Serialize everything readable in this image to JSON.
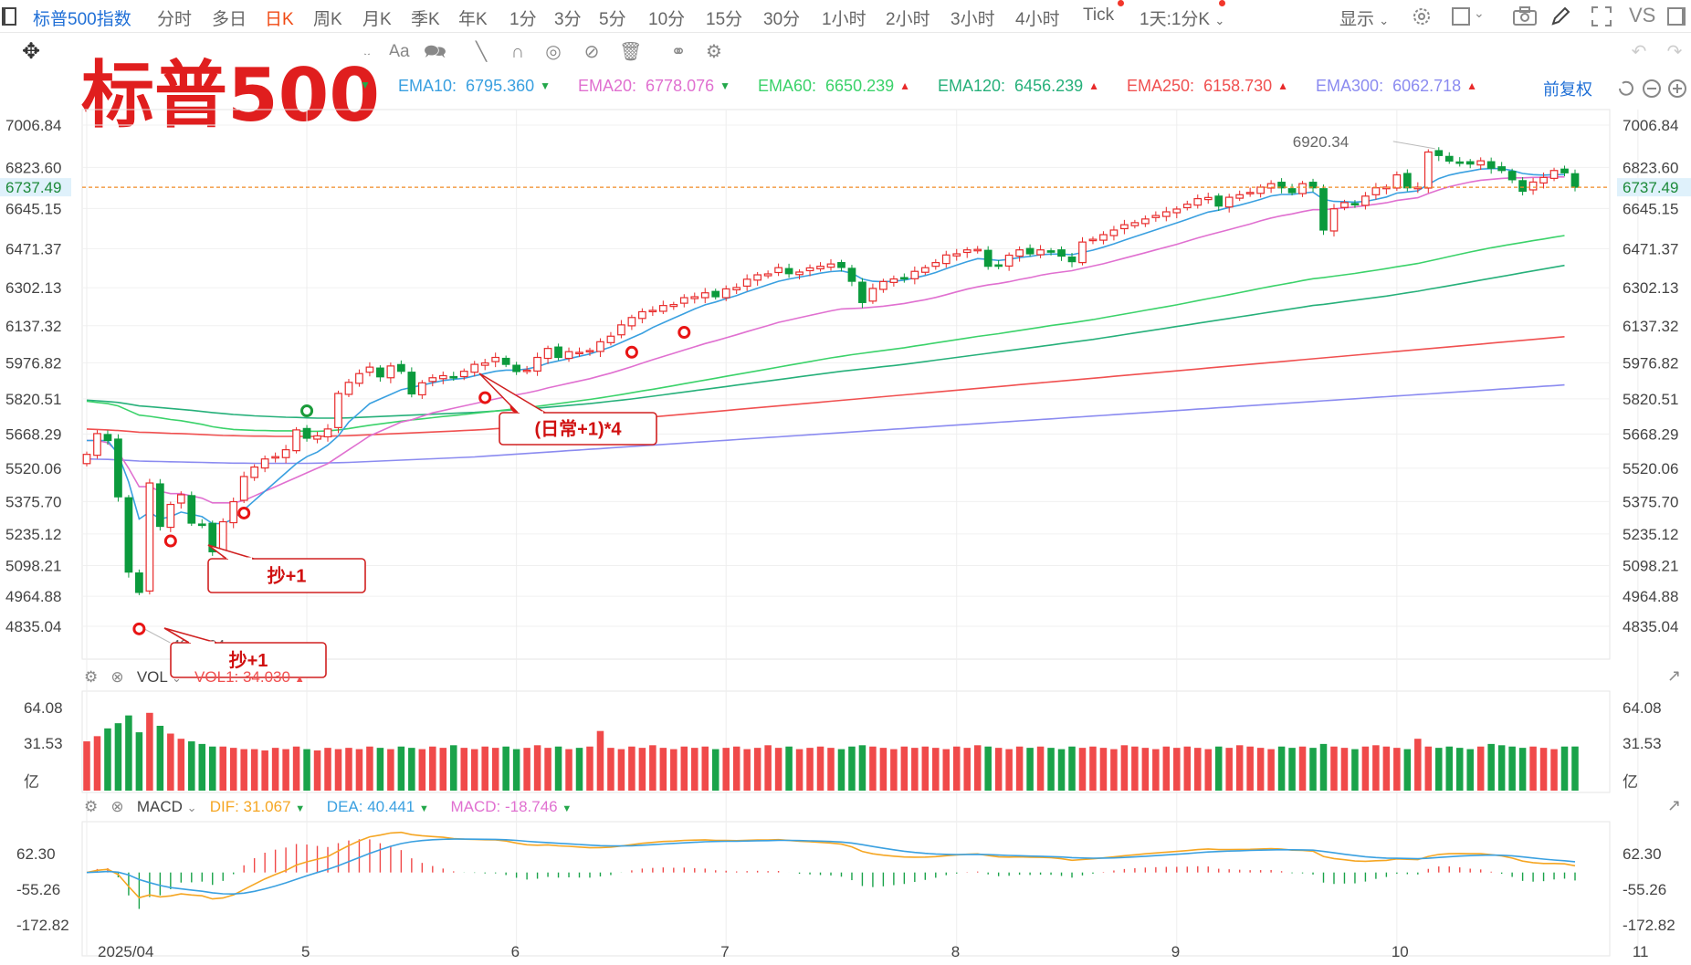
{
  "topbar": {
    "symbol": "标普500指数",
    "timeframes": [
      "分时",
      "多日",
      "日K",
      "周K",
      "月K",
      "季K",
      "年K",
      "1分",
      "3分",
      "5分",
      "10分",
      "15分",
      "30分",
      "1小时",
      "2小时",
      "3小时",
      "4小时",
      "Tick"
    ],
    "active_timeframe": "日K",
    "period_select": "1天:1分K",
    "display_label": "显示",
    "vs_label": "VS"
  },
  "title": "标普500",
  "adjust_label": "前复权",
  "ema_legend": [
    {
      "label": "EMA10:",
      "value": "6795.360",
      "dir": "down",
      "color": "#3aa0e0"
    },
    {
      "label": "EMA20:",
      "value": "6778.076",
      "dir": "down",
      "color": "#e070d0"
    },
    {
      "label": "EMA60:",
      "value": "6650.239",
      "dir": "up",
      "color": "#3bd26a"
    },
    {
      "label": "EMA120:",
      "value": "6456.239",
      "dir": "up",
      "color": "#26b07a"
    },
    {
      "label": "EMA250:",
      "value": "6158.730",
      "dir": "up",
      "color": "#f05050"
    },
    {
      "label": "EMA300:",
      "value": "6062.718",
      "dir": "up",
      "color": "#8b8bf0"
    }
  ],
  "price_axis": [
    "7006.84",
    "6823.60",
    "6645.15",
    "6471.37",
    "6302.13",
    "6137.32",
    "5976.82",
    "5820.51",
    "5668.29",
    "5520.06",
    "5375.70",
    "5235.12",
    "5098.21",
    "4964.88",
    "4835.04"
  ],
  "last_price": "6737.49",
  "high_marker": "6920.34",
  "low_marker": "4835.04",
  "annotations": [
    {
      "text": "(日常+1)*4"
    },
    {
      "text": "抄+1"
    },
    {
      "text": "抄+1"
    }
  ],
  "vol_panel": {
    "name": "VOL",
    "legend": "VOL1:  34.030",
    "axis": [
      "64.08",
      "31.53",
      "亿"
    ]
  },
  "macd_panel": {
    "name": "MACD",
    "dif": "DIF:  31.067",
    "dea": "DEA:  40.441",
    "macd": "MACD:  -18.746",
    "axis": [
      "62.30",
      "-55.26",
      "-172.82"
    ]
  },
  "x_axis": [
    "2025/04",
    "5",
    "6",
    "7",
    "8",
    "9",
    "10",
    "11"
  ],
  "chart_data": {
    "type": "candlestick",
    "title": "标普500",
    "xlabel": "",
    "ylabel": "",
    "ylim": [
      4835.04,
      7006.84
    ],
    "months": [
      {
        "label": "2025/04",
        "start_bar": 0
      },
      {
        "label": "5",
        "start_bar": 21
      },
      {
        "label": "6",
        "start_bar": 41
      },
      {
        "label": "7",
        "start_bar": 61
      },
      {
        "label": "8",
        "start_bar": 83
      },
      {
        "label": "9",
        "start_bar": 104
      },
      {
        "label": "10",
        "start_bar": 125
      },
      {
        "label": "11",
        "start_bar": 148
      }
    ],
    "close": [
      5580,
      5670,
      5640,
      5396,
      5070,
      4982,
      5456,
      5268,
      5363,
      5405,
      5282,
      5275,
      5158,
      5288,
      5375,
      5484,
      5525,
      5560,
      5570,
      5600,
      5686,
      5650,
      5660,
      5690,
      5844,
      5892,
      5930,
      5958,
      5916,
      5963,
      5940,
      5842,
      5890,
      5912,
      5921,
      5911,
      5940,
      5970,
      5976,
      6000,
      5970,
      5939,
      5945,
      6000,
      6039,
      6000,
      6025,
      6022,
      6030,
      6068,
      6092,
      6141,
      6173,
      6198,
      6204,
      6225,
      6229,
      6259,
      6263,
      6280,
      6263,
      6297,
      6303,
      6339,
      6358,
      6362,
      6389,
      6363,
      6370,
      6388,
      6395,
      6405,
      6390,
      6330,
      6238,
      6299,
      6329,
      6340,
      6345,
      6373,
      6389,
      6411,
      6444,
      6449,
      6466,
      6468,
      6395,
      6400,
      6443,
      6466,
      6449,
      6466,
      6460,
      6439,
      6415,
      6500,
      6512,
      6532,
      6552,
      6575,
      6584,
      6600,
      6615,
      6631,
      6643,
      6664,
      6688,
      6693,
      6656,
      6694,
      6705,
      6715,
      6738,
      6753,
      6735,
      6714,
      6753,
      6735,
      6552,
      6644,
      6671,
      6663,
      6699,
      6735,
      6738,
      6791,
      6735,
      6738,
      6890,
      6875,
      6851,
      6842,
      6838,
      6852,
      6820,
      6810,
      6770,
      6720,
      6760,
      6780,
      6810,
      6800,
      6737.49
    ],
    "ema10": [
      5640,
      5640,
      5640,
      5580,
      5460,
      5300,
      5330,
      5300,
      5310,
      5330,
      5320,
      5310,
      5280,
      5280,
      5300,
      5340,
      5380,
      5420,
      5460,
      5500,
      5540,
      5570,
      5590,
      5620,
      5660,
      5720,
      5760,
      5800,
      5820,
      5840,
      5860,
      5870,
      5880,
      5890,
      5900,
      5905,
      5910,
      5920,
      5930,
      5940,
      5945,
      5945,
      5950,
      5960,
      5975,
      5985,
      5995,
      6005,
      6015,
      6030,
      6045,
      6065,
      6085,
      6105,
      6130,
      6150,
      6170,
      6190,
      6210,
      6228,
      6240,
      6255,
      6268,
      6285,
      6300,
      6315,
      6330,
      6340,
      6348,
      6356,
      6365,
      6372,
      6375,
      6365,
      6340,
      6330,
      6328,
      6330,
      6335,
      6345,
      6355,
      6368,
      6385,
      6400,
      6415,
      6428,
      6425,
      6420,
      6425,
      6433,
      6438,
      6445,
      6448,
      6448,
      6445,
      6455,
      6465,
      6478,
      6492,
      6508,
      6523,
      6538,
      6553,
      6568,
      6583,
      6598,
      6615,
      6630,
      6638,
      6650,
      6660,
      6672,
      6685,
      6700,
      6706,
      6706,
      6712,
      6716,
      6685,
      6676,
      6675,
      6673,
      6676,
      6685,
      6695,
      6712,
      6717,
      6722,
      6750,
      6775,
      6790,
      6800,
      6808,
      6816,
      6818,
      6818,
      6810,
      6797,
      6792,
      6790,
      6792,
      6792,
      6795.36
    ],
    "ema20": [
      5640,
      5640,
      5630,
      5590,
      5520,
      5440,
      5440,
      5420,
      5410,
      5410,
      5400,
      5390,
      5370,
      5370,
      5370,
      5380,
      5400,
      5420,
      5440,
      5460,
      5480,
      5500,
      5520,
      5540,
      5570,
      5600,
      5630,
      5660,
      5680,
      5700,
      5720,
      5730,
      5745,
      5760,
      5770,
      5780,
      5790,
      5800,
      5810,
      5820,
      5830,
      5838,
      5846,
      5856,
      5868,
      5878,
      5888,
      5898,
      5908,
      5920,
      5932,
      5946,
      5960,
      5975,
      5990,
      6004,
      6018,
      6032,
      6046,
      6060,
      6072,
      6085,
      6098,
      6112,
      6125,
      6138,
      6152,
      6162,
      6172,
      6182,
      6192,
      6202,
      6210,
      6212,
      6214,
      6218,
      6222,
      6228,
      6234,
      6242,
      6250,
      6260,
      6272,
      6284,
      6296,
      6306,
      6314,
      6320,
      6328,
      6338,
      6346,
      6356,
      6364,
      6370,
      6376,
      6386,
      6396,
      6406,
      6418,
      6430,
      6442,
      6454,
      6466,
      6478,
      6490,
      6504,
      6518,
      6530,
      6542,
      6554,
      6566,
      6578,
      6592,
      6604,
      6614,
      6622,
      6632,
      6640,
      6640,
      6644,
      6648,
      6652,
      6658,
      6664,
      6670,
      6680,
      6686,
      6692,
      6710,
      6726,
      6740,
      6750,
      6760,
      6768,
      6772,
      6776,
      6778,
      6778,
      6780,
      6780,
      6782,
      6782,
      6778.076
    ],
    "ema60": [
      5810,
      5805,
      5800,
      5790,
      5770,
      5750,
      5745,
      5738,
      5731,
      5726,
      5718,
      5710,
      5700,
      5693,
      5688,
      5686,
      5684,
      5683,
      5682,
      5682,
      5682,
      5680,
      5680,
      5682,
      5686,
      5692,
      5699,
      5706,
      5712,
      5718,
      5724,
      5729,
      5734,
      5739,
      5744,
      5748,
      5753,
      5758,
      5763,
      5768,
      5773,
      5778,
      5783,
      5788,
      5794,
      5800,
      5806,
      5812,
      5818,
      5825,
      5832,
      5839,
      5847,
      5855,
      5862,
      5870,
      5878,
      5886,
      5894,
      5902,
      5910,
      5918,
      5926,
      5934,
      5942,
      5950,
      5958,
      5966,
      5974,
      5982,
      5990,
      5998,
      6005,
      6012,
      6018,
      6024,
      6030,
      6036,
      6042,
      6049,
      6056,
      6063,
      6070,
      6077,
      6084,
      6091,
      6097,
      6103,
      6110,
      6117,
      6124,
      6131,
      6138,
      6144,
      6150,
      6157,
      6164,
      6172,
      6180,
      6188,
      6196,
      6204,
      6212,
      6220,
      6228,
      6237,
      6246,
      6255,
      6263,
      6272,
      6281,
      6290,
      6299,
      6308,
      6316,
      6324,
      6333,
      6341,
      6346,
      6352,
      6358,
      6364,
      6371,
      6378,
      6385,
      6393,
      6400,
      6407,
      6417,
      6427,
      6437,
      6447,
      6457,
      6466,
      6475,
      6483,
      6491,
      6498,
      6506,
      6513,
      6521,
      6528,
      6650.239
    ],
    "ema120": [
      5815,
      5812,
      5809,
      5805,
      5798,
      5790,
      5787,
      5783,
      5779,
      5775,
      5771,
      5766,
      5761,
      5757,
      5753,
      5750,
      5747,
      5745,
      5743,
      5741,
      5740,
      5738,
      5737,
      5737,
      5737,
      5738,
      5740,
      5742,
      5744,
      5746,
      5748,
      5750,
      5752,
      5754,
      5756,
      5758,
      5760,
      5762,
      5765,
      5768,
      5771,
      5774,
      5777,
      5780,
      5784,
      5788,
      5792,
      5796,
      5800,
      5805,
      5810,
      5815,
      5820,
      5826,
      5832,
      5838,
      5844,
      5850,
      5856,
      5862,
      5868,
      5874,
      5880,
      5886,
      5892,
      5898,
      5904,
      5910,
      5916,
      5922,
      5928,
      5934,
      5940,
      5945,
      5950,
      5955,
      5960,
      5965,
      5970,
      5976,
      5982,
      5988,
      5994,
      6000,
      6006,
      6012,
      6018,
      6024,
      6030,
      6036,
      6042,
      6048,
      6054,
      6060,
      6066,
      6072,
      6078,
      6085,
      6092,
      6099,
      6106,
      6113,
      6120,
      6127,
      6134,
      6141,
      6148,
      6155,
      6162,
      6169,
      6176,
      6183,
      6190,
      6197,
      6204,
      6211,
      6218,
      6225,
      6230,
      6236,
      6242,
      6248,
      6254,
      6260,
      6266,
      6273,
      6280,
      6287,
      6295,
      6303,
      6311,
      6319,
      6327,
      6335,
      6343,
      6351,
      6359,
      6367,
      6375,
      6383,
      6391,
      6399,
      6456.239
    ],
    "ema250": [
      5690,
      5688,
      5686,
      5683,
      5680,
      5676,
      5675,
      5673,
      5671,
      5670,
      5668,
      5666,
      5664,
      5662,
      5661,
      5660,
      5659,
      5659,
      5658,
      5658,
      5658,
      5658,
      5658,
      5659,
      5660,
      5661,
      5663,
      5665,
      5667,
      5669,
      5671,
      5673,
      5675,
      5677,
      5679,
      5681,
      5683,
      5685,
      5688,
      5691,
      5694,
      5697,
      5700,
      5703,
      5706,
      5709,
      5712,
      5715,
      5718,
      5722,
      5726,
      5730,
      5734,
      5738,
      5742,
      5746,
      5750,
      5754,
      5758,
      5762,
      5766,
      5770,
      5774,
      5778,
      5782,
      5786,
      5790,
      5794,
      5798,
      5802,
      5806,
      5810,
      5814,
      5818,
      5822,
      5826,
      5830,
      5834,
      5838,
      5842,
      5846,
      5850,
      5854,
      5858,
      5862,
      5866,
      5870,
      5874,
      5878,
      5882,
      5886,
      5890,
      5894,
      5898,
      5902,
      5906,
      5910,
      5914,
      5918,
      5922,
      5926,
      5930,
      5934,
      5938,
      5942,
      5946,
      5950,
      5954,
      5958,
      5962,
      5966,
      5970,
      5974,
      5978,
      5982,
      5986,
      5990,
      5994,
      5998,
      6002,
      6006,
      6010,
      6014,
      6018,
      6022,
      6026,
      6030,
      6034,
      6038,
      6042,
      6046,
      6050,
      6054,
      6058,
      6062,
      6066,
      6070,
      6074,
      6078,
      6082,
      6086,
      6090,
      6158.73
    ],
    "ema300": [
      5560,
      5559,
      5558,
      5556,
      5554,
      5551,
      5550,
      5549,
      5548,
      5547,
      5546,
      5545,
      5544,
      5543,
      5542,
      5542,
      5541,
      5541,
      5541,
      5541,
      5541,
      5541,
      5542,
      5543,
      5544,
      5545,
      5547,
      5549,
      5551,
      5553,
      5555,
      5557,
      5559,
      5561,
      5563,
      5565,
      5567,
      5569,
      5572,
      5575,
      5578,
      5581,
      5584,
      5587,
      5590,
      5593,
      5596,
      5599,
      5602,
      5605,
      5608,
      5611,
      5614,
      5617,
      5620,
      5623,
      5626,
      5629,
      5632,
      5635,
      5638,
      5641,
      5644,
      5647,
      5650,
      5653,
      5656,
      5659,
      5662,
      5665,
      5668,
      5671,
      5674,
      5677,
      5680,
      5683,
      5686,
      5689,
      5692,
      5695,
      5698,
      5701,
      5704,
      5707,
      5710,
      5713,
      5716,
      5719,
      5722,
      5725,
      5728,
      5731,
      5734,
      5737,
      5740,
      5743,
      5746,
      5749,
      5752,
      5755,
      5758,
      5761,
      5764,
      5767,
      5770,
      5773,
      5776,
      5779,
      5782,
      5785,
      5788,
      5791,
      5794,
      5797,
      5800,
      5803,
      5806,
      5809,
      5812,
      5815,
      5818,
      5821,
      5824,
      5827,
      5830,
      5833,
      5836,
      5839,
      5842,
      5845,
      5848,
      5851,
      5854,
      5857,
      5860,
      5863,
      5866,
      5869,
      5872,
      5875,
      5878,
      5881,
      6062.718
    ],
    "volume": [
      38,
      42,
      48,
      52,
      58,
      45,
      60,
      50,
      44,
      40,
      38,
      36,
      34,
      34,
      33,
      32,
      32,
      31,
      33,
      32,
      34,
      32,
      31,
      33,
      32,
      33,
      32,
      34,
      33,
      32,
      34,
      33,
      32,
      34,
      33,
      35,
      33,
      32,
      34,
      33,
      34,
      32,
      33,
      35,
      33,
      34,
      32,
      33,
      34,
      46,
      33,
      32,
      34,
      33,
      35,
      33,
      32,
      34,
      33,
      34,
      32,
      33,
      34,
      32,
      33,
      35,
      33,
      34,
      32,
      33,
      34,
      33,
      32,
      34,
      35,
      34,
      33,
      32,
      34,
      33,
      34,
      33,
      32,
      34,
      33,
      35,
      34,
      33,
      32,
      34,
      33,
      34,
      33,
      32,
      34,
      33,
      34,
      33,
      32,
      35,
      34,
      33,
      32,
      34,
      33,
      34,
      33,
      32,
      34,
      33,
      35,
      34,
      33,
      32,
      34,
      33,
      34,
      33,
      36,
      34,
      33,
      32,
      34,
      35,
      34,
      33,
      32,
      40,
      34,
      33,
      34,
      33,
      32,
      34,
      36,
      35,
      34,
      33,
      34,
      33,
      32,
      34,
      34.03
    ]
  }
}
